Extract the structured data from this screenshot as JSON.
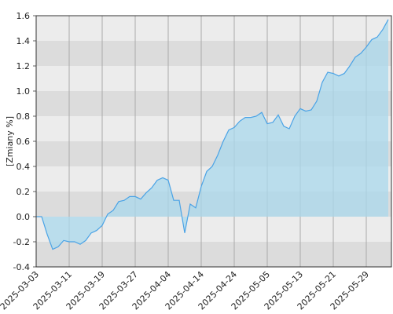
{
  "chart_data": {
    "type": "area",
    "y_label": "[Zmiany %]",
    "categories": [
      "2025-03-03",
      null,
      null,
      null,
      null,
      null,
      "2025-03-11",
      null,
      null,
      null,
      null,
      null,
      "2025-03-19",
      null,
      null,
      null,
      null,
      null,
      "2025-03-27",
      null,
      null,
      null,
      null,
      null,
      "2025-04-04",
      null,
      null,
      null,
      null,
      null,
      "2025-04-14",
      null,
      null,
      null,
      null,
      null,
      "2025-04-24",
      null,
      null,
      null,
      null,
      null,
      "2025-05-05",
      null,
      null,
      null,
      null,
      null,
      "2025-05-13",
      null,
      null,
      null,
      null,
      null,
      "2025-05-21",
      null,
      null,
      null,
      null,
      null,
      "2025-05-29",
      null,
      null,
      null,
      null
    ],
    "values": [
      0.0,
      0.0,
      -0.14,
      -0.26,
      -0.24,
      -0.19,
      -0.2,
      -0.2,
      -0.22,
      -0.19,
      -0.13,
      -0.11,
      -0.07,
      0.02,
      0.05,
      0.12,
      0.13,
      0.16,
      0.16,
      0.14,
      0.19,
      0.23,
      0.29,
      0.31,
      0.29,
      0.13,
      0.13,
      -0.13,
      0.1,
      0.07,
      0.24,
      0.36,
      0.4,
      0.49,
      0.6,
      0.69,
      0.71,
      0.76,
      0.79,
      0.79,
      0.8,
      0.83,
      0.74,
      0.75,
      0.81,
      0.72,
      0.7,
      0.8,
      0.86,
      0.84,
      0.85,
      0.92,
      1.07,
      1.15,
      1.14,
      1.12,
      1.14,
      1.2,
      1.27,
      1.3,
      1.35,
      1.41,
      1.43,
      1.49,
      1.57
    ],
    "color": "#4aa3e6",
    "fill": "#a9d8ec",
    "ylim": [
      -0.4,
      1.6
    ],
    "yticks": [
      -0.4,
      -0.2,
      {
        "value": 0,
        "label": "0.0"
      },
      0.2,
      0.4,
      0.6,
      0.8,
      {
        "value": 1,
        "label": "1.0"
      },
      1.2,
      1.4,
      1.6
    ],
    "grid": true
  }
}
